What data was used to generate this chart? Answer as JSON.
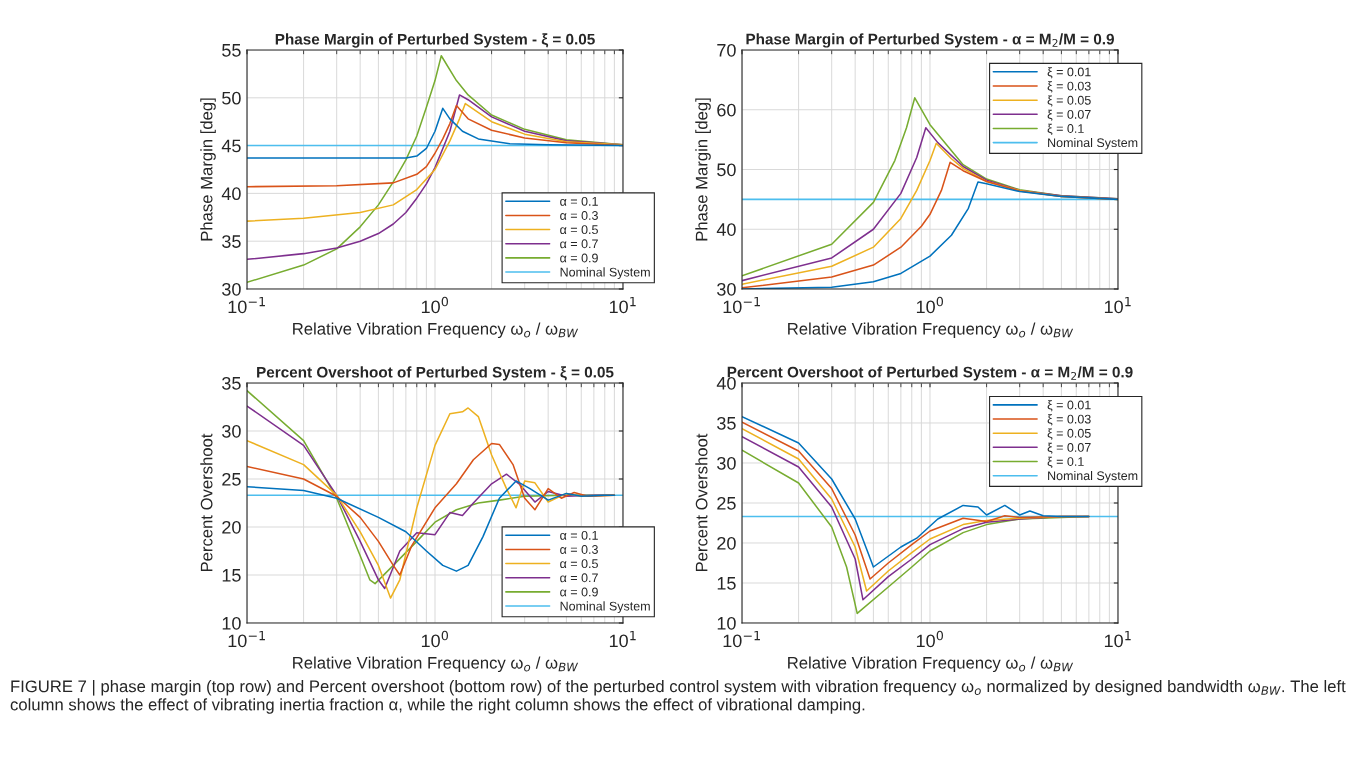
{
  "chart_data": [
    {
      "type": "line",
      "title": "Phase Margin of Perturbed System - ξ = 0.05",
      "xlabel": "Relative Vibration Frequency ω$_{o}$ / ω$_{BW}$",
      "ylabel": "Phase Margin [deg]",
      "log": "x",
      "grid": true,
      "legend": "lower right",
      "xlim": [
        0.1,
        10
      ],
      "xticks": [
        {
          "value": 0.1,
          "label": "10$^{−1}$"
        },
        {
          "value": 1,
          "label": "10$^{0}$"
        },
        {
          "value": 10,
          "label": "10$^{1}$"
        }
      ],
      "ylim": [
        30,
        55
      ],
      "yticks": [
        30,
        35,
        40,
        45,
        50,
        55
      ],
      "series": [
        {
          "name": "α = 0.1",
          "color": "#0072bd",
          "x": [
            0.1,
            0.3,
            0.5,
            0.7,
            0.8,
            0.9,
            1.0,
            1.1,
            1.2,
            1.4,
            1.7,
            2.5,
            4,
            10
          ],
          "values": [
            43.7,
            43.7,
            43.7,
            43.7,
            43.9,
            44.7,
            46.5,
            48.9,
            47.8,
            46.5,
            45.7,
            45.2,
            45.1,
            45.0
          ]
        },
        {
          "name": "α = 0.3",
          "color": "#d95319",
          "x": [
            0.1,
            0.3,
            0.6,
            0.8,
            0.9,
            1.0,
            1.1,
            1.2,
            1.3,
            1.5,
            2,
            3,
            5,
            10
          ],
          "values": [
            40.7,
            40.8,
            41.1,
            42.0,
            42.8,
            44.2,
            45.7,
            47.3,
            49.2,
            47.8,
            46.6,
            45.8,
            45.3,
            45.0
          ]
        },
        {
          "name": "α = 0.5",
          "color": "#edb120",
          "x": [
            0.1,
            0.2,
            0.4,
            0.6,
            0.8,
            1.0,
            1.2,
            1.35,
            1.45,
            2,
            3,
            5,
            10
          ],
          "values": [
            37.1,
            37.4,
            38.0,
            38.8,
            40.4,
            42.5,
            45.5,
            47.8,
            49.4,
            47.5,
            46.2,
            45.4,
            45.1
          ]
        },
        {
          "name": "α = 0.7",
          "color": "#7e2f8e",
          "x": [
            0.1,
            0.2,
            0.3,
            0.4,
            0.5,
            0.6,
            0.7,
            0.8,
            0.9,
            1.0,
            1.2,
            1.35,
            1.5,
            2,
            3,
            5,
            10
          ],
          "values": [
            33.1,
            33.7,
            34.3,
            35.0,
            35.8,
            36.8,
            38.0,
            39.5,
            41.0,
            42.7,
            46.5,
            50.3,
            49.8,
            48.0,
            46.5,
            45.5,
            45.1
          ]
        },
        {
          "name": "α = 0.9",
          "color": "#77ac30",
          "x": [
            0.1,
            0.2,
            0.3,
            0.4,
            0.5,
            0.6,
            0.7,
            0.8,
            0.9,
            1.0,
            1.08,
            1.3,
            1.5,
            2,
            3,
            5,
            10
          ],
          "values": [
            30.7,
            32.5,
            34.2,
            36.5,
            38.8,
            41.2,
            43.5,
            46.0,
            49.0,
            51.8,
            54.4,
            51.8,
            50.3,
            48.2,
            46.7,
            45.6,
            45.1
          ]
        },
        {
          "name": "Nominal System",
          "color": "#4dbeee",
          "x": [
            0.1,
            10
          ],
          "values": [
            45,
            45
          ]
        }
      ]
    },
    {
      "type": "line",
      "title": "Phase Margin of Perturbed System - α = M$_{2}$/M = 0.9",
      "xlabel": "Relative Vibration Frequency ω$_{o}$ / ω$_{BW}$",
      "ylabel": "Phase Margin [deg]",
      "log": "x",
      "grid": true,
      "legend": "top right",
      "xlim": [
        0.1,
        10
      ],
      "xticks": [
        {
          "value": 0.1,
          "label": "10$^{−1}$"
        },
        {
          "value": 1,
          "label": "10$^{0}$"
        },
        {
          "value": 10,
          "label": "10$^{1}$"
        }
      ],
      "ylim": [
        30,
        70
      ],
      "yticks": [
        30,
        40,
        50,
        60,
        70
      ],
      "series": [
        {
          "name": "ξ = 0.01",
          "color": "#0072bd",
          "x": [
            0.1,
            0.3,
            0.5,
            0.7,
            1.0,
            1.3,
            1.6,
            1.8,
            2,
            3,
            5,
            10
          ],
          "values": [
            30.0,
            30.3,
            31.2,
            32.6,
            35.5,
            39.0,
            43.5,
            47.9,
            47.6,
            46.3,
            45.5,
            45.0
          ]
        },
        {
          "name": "ξ = 0.03",
          "color": "#d95319",
          "x": [
            0.1,
            0.3,
            0.5,
            0.7,
            0.9,
            1.0,
            1.15,
            1.28,
            1.5,
            2,
            3,
            5,
            10
          ],
          "values": [
            30.2,
            32.0,
            34.0,
            37.0,
            40.5,
            42.5,
            46.5,
            51.2,
            49.8,
            48.0,
            46.4,
            45.5,
            45.0
          ]
        },
        {
          "name": "ξ = 0.05",
          "color": "#edb120",
          "x": [
            0.1,
            0.3,
            0.5,
            0.7,
            0.85,
            1.0,
            1.08,
            1.3,
            1.5,
            2,
            3,
            5,
            10
          ],
          "values": [
            30.8,
            33.8,
            37.0,
            41.8,
            46.5,
            51.5,
            54.4,
            51.8,
            50.2,
            48.0,
            46.5,
            45.5,
            45.0
          ]
        },
        {
          "name": "ξ = 0.07",
          "color": "#7e2f8e",
          "x": [
            0.1,
            0.3,
            0.5,
            0.7,
            0.85,
            0.95,
            1.1,
            1.5,
            2,
            3,
            5,
            10
          ],
          "values": [
            31.4,
            35.2,
            40.0,
            46.0,
            52.0,
            57.0,
            54.5,
            50.5,
            48.2,
            46.5,
            45.6,
            45.1
          ]
        },
        {
          "name": "ξ = 0.1",
          "color": "#77ac30",
          "x": [
            0.1,
            0.3,
            0.5,
            0.65,
            0.75,
            0.83,
            1.0,
            1.5,
            2,
            3,
            5,
            10
          ],
          "values": [
            32.2,
            37.5,
            44.5,
            51.5,
            57.0,
            62.0,
            57.5,
            50.8,
            48.4,
            46.6,
            45.6,
            45.1
          ]
        },
        {
          "name": "Nominal System",
          "color": "#4dbeee",
          "x": [
            0.1,
            10
          ],
          "values": [
            45,
            45
          ]
        }
      ]
    },
    {
      "type": "line",
      "title": "Percent Overshoot of Perturbed System - ξ = 0.05",
      "xlabel": "Relative Vibration Frequency ω$_{o}$ / ω$_{BW}$",
      "ylabel": "Percent Overshoot",
      "log": "x",
      "grid": true,
      "legend": "lower right",
      "xlim": [
        0.1,
        10
      ],
      "xticks": [
        {
          "value": 0.1,
          "label": "10$^{−1}$"
        },
        {
          "value": 1,
          "label": "10$^{0}$"
        },
        {
          "value": 10,
          "label": "10$^{1}$"
        }
      ],
      "ylim": [
        10,
        35
      ],
      "yticks": [
        10,
        15,
        20,
        25,
        30,
        35
      ],
      "series": [
        {
          "name": "α = 0.1",
          "color": "#0072bd",
          "x": [
            0.1,
            0.2,
            0.3,
            0.5,
            0.7,
            0.9,
            1.1,
            1.3,
            1.5,
            1.8,
            2.2,
            2.7,
            3.2,
            4,
            5,
            6,
            8,
            9
          ],
          "values": [
            24.2,
            23.8,
            23.0,
            21.0,
            19.5,
            17.5,
            16.0,
            15.4,
            16.0,
            19.0,
            23.0,
            24.8,
            24.0,
            22.8,
            23.5,
            23.2,
            23.3,
            23.3
          ]
        },
        {
          "name": "α = 0.3",
          "color": "#d95319",
          "x": [
            0.1,
            0.2,
            0.3,
            0.4,
            0.5,
            0.6,
            0.65,
            0.75,
            1.0,
            1.3,
            1.6,
            2.0,
            2.2,
            2.6,
            3.0,
            3.4,
            4,
            4.7,
            5.5,
            6.5,
            9
          ],
          "values": [
            26.3,
            25.0,
            23.2,
            21.0,
            18.5,
            16.0,
            15.0,
            18.0,
            22.0,
            24.5,
            27.0,
            28.7,
            28.6,
            26.5,
            23.0,
            21.8,
            24.0,
            23.0,
            23.6,
            23.2,
            23.3
          ]
        },
        {
          "name": "α = 0.5",
          "color": "#edb120",
          "x": [
            0.1,
            0.2,
            0.3,
            0.4,
            0.5,
            0.58,
            0.65,
            0.8,
            1.0,
            1.2,
            1.4,
            1.5,
            1.7,
            2.0,
            2.4,
            2.7,
            3.0,
            3.4,
            4.0,
            5.0,
            6,
            9
          ],
          "values": [
            29.0,
            26.5,
            23.3,
            19.5,
            16.0,
            12.6,
            14.5,
            22.0,
            28.5,
            31.8,
            32.0,
            32.4,
            31.5,
            27.5,
            24.0,
            22.0,
            24.8,
            24.6,
            22.6,
            23.5,
            23.2,
            23.3
          ]
        },
        {
          "name": "α = 0.7",
          "color": "#7e2f8e",
          "x": [
            0.1,
            0.2,
            0.3,
            0.4,
            0.5,
            0.54,
            0.65,
            0.8,
            1.0,
            1.2,
            1.4,
            1.6,
            2.0,
            2.4,
            2.8,
            3.4,
            4,
            5,
            7,
            9
          ],
          "values": [
            32.6,
            28.5,
            23.3,
            18.5,
            14.5,
            13.6,
            17.5,
            19.4,
            19.2,
            21.5,
            21.2,
            22.5,
            24.5,
            25.5,
            24.5,
            22.6,
            23.7,
            23.2,
            23.3,
            23.3
          ]
        },
        {
          "name": "α = 0.9",
          "color": "#77ac30",
          "x": [
            0.1,
            0.2,
            0.3,
            0.4,
            0.45,
            0.48,
            0.6,
            0.8,
            1.0,
            1.3,
            1.7,
            2.2,
            3,
            5,
            9
          ],
          "values": [
            34.2,
            29.0,
            23.0,
            17.0,
            14.5,
            14.1,
            16.0,
            18.5,
            20.5,
            21.8,
            22.5,
            22.8,
            23.2,
            23.3,
            23.3
          ]
        },
        {
          "name": "Nominal System",
          "color": "#4dbeee",
          "x": [
            0.1,
            10
          ],
          "values": [
            23.3,
            23.3
          ]
        }
      ]
    },
    {
      "type": "line",
      "title": "Percent Overshoot of Perturbed System - α = M$_{2}$/M = 0.9",
      "xlabel": "Relative Vibration Frequency ω$_{o}$ / ω$_{BW}$",
      "ylabel": "Percent Overshoot",
      "log": "x",
      "grid": true,
      "legend": "top right",
      "xlim": [
        0.1,
        10
      ],
      "xticks": [
        {
          "value": 0.1,
          "label": "10$^{−1}$"
        },
        {
          "value": 1,
          "label": "10$^{0}$"
        },
        {
          "value": 10,
          "label": "10$^{1}$"
        }
      ],
      "ylim": [
        10,
        40
      ],
      "yticks": [
        10,
        15,
        20,
        25,
        30,
        35,
        40
      ],
      "annotations": [
        "FIGURE 7 | phase margin (top row) and Percent overshoot (bottom row) of the perturbed control system with vibration frequency ω$_{o}$ normalized by designed bandwidth ω$_{BW}$. The left column shows the effect of vibrating inertia fraction α, while the right column shows the effect of vibrational damping."
      ],
      "series": [
        {
          "name": "ξ = 0.01",
          "color": "#0072bd",
          "x": [
            0.1,
            0.2,
            0.3,
            0.4,
            0.5,
            0.7,
            0.85,
            1.1,
            1.5,
            1.8,
            2.0,
            2.5,
            3.0,
            3.4,
            4,
            5,
            7
          ],
          "values": [
            35.8,
            32.5,
            28.0,
            23.0,
            17.0,
            19.5,
            20.6,
            23.0,
            24.7,
            24.5,
            23.5,
            24.7,
            23.5,
            24.0,
            23.4,
            23.3,
            23.3
          ]
        },
        {
          "name": "ξ = 0.03",
          "color": "#d95319",
          "x": [
            0.1,
            0.2,
            0.3,
            0.4,
            0.48,
            0.6,
            0.8,
            1.0,
            1.5,
            2.0,
            2.5,
            3,
            5,
            7
          ],
          "values": [
            35.1,
            31.5,
            26.8,
            21.0,
            15.5,
            17.5,
            19.8,
            21.5,
            23.1,
            22.7,
            23.4,
            23.2,
            23.3,
            23.3
          ]
        },
        {
          "name": "ξ = 0.05",
          "color": "#edb120",
          "x": [
            0.1,
            0.2,
            0.3,
            0.4,
            0.46,
            0.6,
            0.8,
            1.0,
            1.5,
            2,
            3,
            5,
            7
          ],
          "values": [
            34.3,
            30.5,
            25.5,
            19.5,
            14.0,
            16.5,
            18.8,
            20.5,
            22.3,
            22.8,
            23.1,
            23.3,
            23.3
          ]
        },
        {
          "name": "ξ = 0.07",
          "color": "#7e2f8e",
          "x": [
            0.1,
            0.2,
            0.3,
            0.4,
            0.44,
            0.6,
            0.8,
            1.0,
            1.5,
            2,
            3,
            5,
            7
          ],
          "values": [
            33.3,
            29.5,
            24.5,
            18.0,
            12.9,
            15.8,
            18.0,
            19.8,
            21.8,
            22.6,
            23.0,
            23.3,
            23.3
          ]
        },
        {
          "name": "ξ = 0.1",
          "color": "#77ac30",
          "x": [
            0.1,
            0.2,
            0.3,
            0.36,
            0.41,
            0.6,
            0.8,
            1.0,
            1.5,
            2,
            3,
            5,
            7
          ],
          "values": [
            31.6,
            27.5,
            22.0,
            17.0,
            11.2,
            14.5,
            17.0,
            19.0,
            21.3,
            22.3,
            23.0,
            23.2,
            23.3
          ]
        },
        {
          "name": "Nominal System",
          "color": "#4dbeee",
          "x": [
            0.1,
            10
          ],
          "values": [
            23.3,
            23.3
          ]
        }
      ]
    }
  ]
}
